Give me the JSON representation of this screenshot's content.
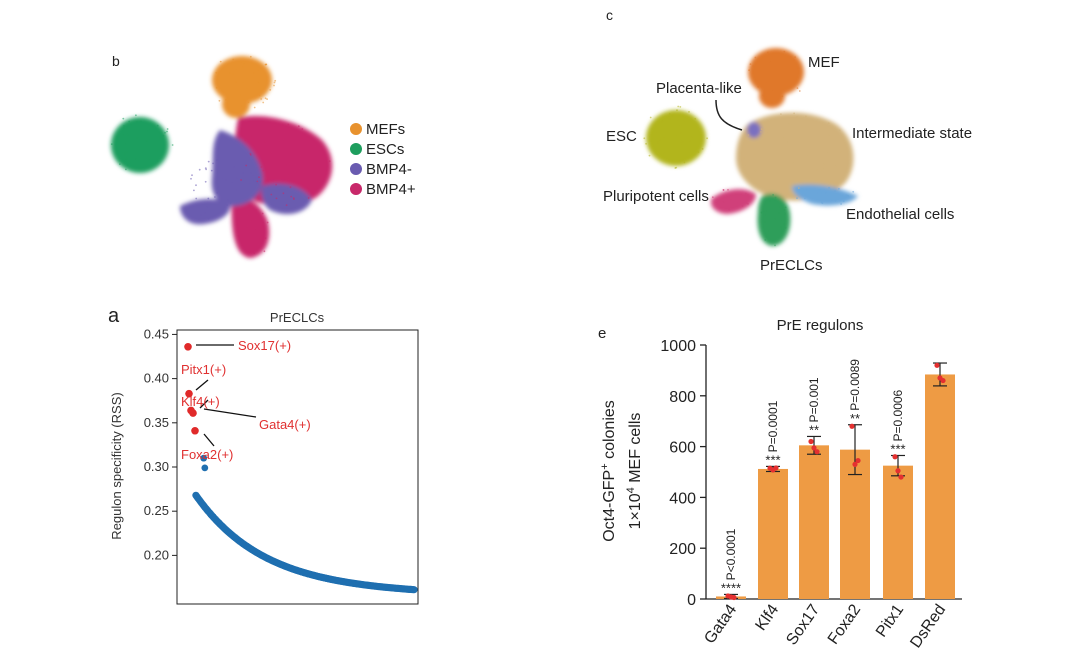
{
  "panels": {
    "b": {
      "letter": "b",
      "legend": [
        {
          "label": "MEFs",
          "color": "#E8922E"
        },
        {
          "label": "ESCs",
          "color": "#1E9E5E"
        },
        {
          "label": "BMP4-",
          "color": "#6A5BB0"
        },
        {
          "label": "BMP4+",
          "color": "#C8286A"
        }
      ]
    },
    "c": {
      "letter": "c",
      "labels": {
        "mef": "MEF",
        "placenta": "Placenta-like",
        "esc": "ESC",
        "intermediate": "Intermediate state",
        "pluripotent": "Pluripotent cells",
        "endothelial": "Endothelial cells",
        "preclc": "PrECLCs"
      },
      "colors": {
        "mef": "#E0782C",
        "placenta": "#7A70C0",
        "esc": "#B2B51E",
        "intermediate": "#D2B27A",
        "pluripotent": "#D0407A",
        "endothelial": "#6AA6DA",
        "preclc": "#2E9E5A"
      }
    }
  },
  "chart_data": [
    {
      "id": "a",
      "letter": "a",
      "type": "scatter",
      "title": "PrECLCs",
      "xlabel": "",
      "ylabel": "Regulon specificity (RSS)",
      "ylim": [
        0.145,
        0.455
      ],
      "yticks": [
        0.2,
        0.25,
        0.3,
        0.35,
        0.4,
        0.45
      ],
      "ytick_labels": [
        "0.20",
        "0.25",
        "0.30",
        "0.35",
        "0.40",
        "0.45"
      ],
      "highlight_color": "#E02A2A",
      "base_color": "#1F6FB0",
      "highlighted": [
        {
          "rank": 1,
          "rss": 0.436,
          "label": "Sox17(+)"
        },
        {
          "rank": 2,
          "rss": 0.383,
          "label": "Pitx1(+)"
        },
        {
          "rank": 3,
          "rss": 0.364,
          "label": "Klf4(+)"
        },
        {
          "rank": 4,
          "rss": 0.361,
          "label": "Gata4(+)"
        },
        {
          "rank": 5,
          "rss": 0.341,
          "label": "Foxa2(+)"
        }
      ],
      "top_blue": [
        {
          "rank": 6,
          "rss": 0.31
        },
        {
          "rank": 7,
          "rss": 0.299
        }
      ],
      "tail_start_rss": 0.268,
      "tail_end_rss": 0.161,
      "n_regulons": 200
    },
    {
      "id": "e",
      "letter": "e",
      "type": "bar",
      "title": "PrE regulons",
      "ylabel_line1": "Oct4-GFP",
      "ylabel_sup": "+",
      "ylabel_line1_end": " colonies",
      "ylabel_line2": "1×10",
      "ylabel_line2_sup": "4",
      "ylabel_line2_end": " MEF cells",
      "ylim": [
        0,
        1000
      ],
      "yticks": [
        0,
        200,
        400,
        600,
        800,
        1000
      ],
      "bar_color": "#EE9B44",
      "point_color": "#E43030",
      "categories": [
        "Gata4",
        "Klf4",
        "Sox17",
        "Foxa2",
        "Pitx1",
        "DsRed"
      ],
      "values": [
        10,
        512,
        605,
        588,
        525,
        884
      ],
      "errors": [
        8,
        10,
        35,
        98,
        40,
        45
      ],
      "points": [
        [
          12,
          8,
          6
        ],
        [
          515,
          508,
          516
        ],
        [
          620,
          595,
          580
        ],
        [
          680,
          530,
          545
        ],
        [
          560,
          505,
          480
        ],
        [
          920,
          870,
          860
        ]
      ],
      "significance": [
        "****",
        "***",
        "**",
        "**",
        "***",
        ""
      ],
      "pvalues": [
        "P<0.0001",
        "P=0.0001",
        "P=0.001",
        "P=0.0089",
        "P=0.0006",
        ""
      ]
    }
  ]
}
